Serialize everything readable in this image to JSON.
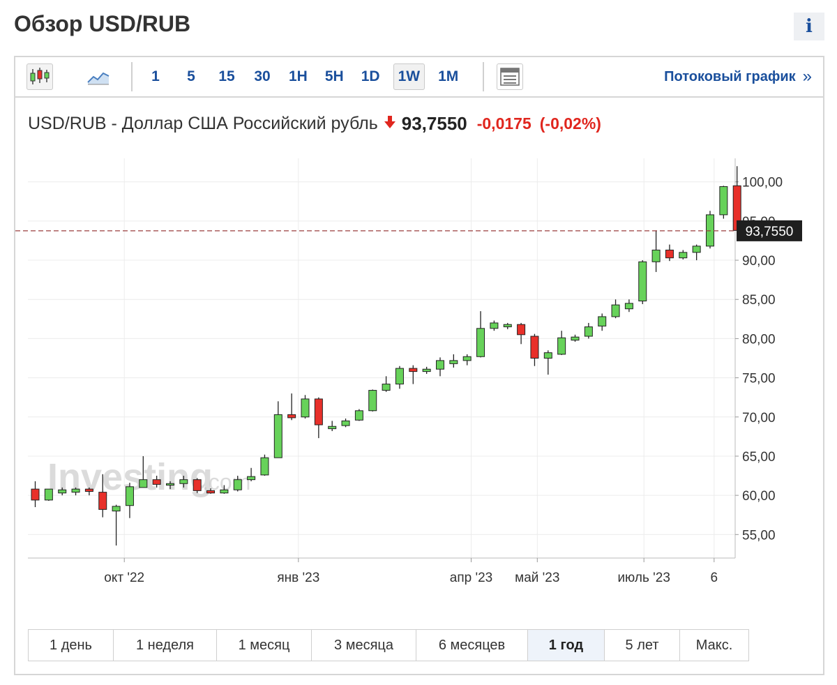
{
  "page": {
    "title": "Обзор USD/RUB",
    "info_label": "i"
  },
  "toolbar": {
    "intervals": [
      {
        "label": "1",
        "active": false
      },
      {
        "label": "5",
        "active": false
      },
      {
        "label": "15",
        "active": false
      },
      {
        "label": "30",
        "active": false
      },
      {
        "label": "1H",
        "active": false
      },
      {
        "label": "5H",
        "active": false
      },
      {
        "label": "1D",
        "active": false
      },
      {
        "label": "1W",
        "active": true
      },
      {
        "label": "1M",
        "active": false
      }
    ],
    "icons": {
      "candle": "candlestick-chart-icon",
      "line": "line-chart-icon",
      "layout": "chart-layout-icon"
    },
    "stream_label": "Потоковый график",
    "stream_arrow": "»"
  },
  "quote": {
    "name": "USD/RUB - Доллар США Российский рубль",
    "price": "93,7550",
    "change": "-0,0175",
    "change_pct": "(-0,02%)",
    "direction": "down"
  },
  "colors": {
    "up": "#67d25a",
    "down": "#e8302a",
    "accent": "#1a4f9c",
    "negative": "#e0261e",
    "current_line": "#9a3d3d"
  },
  "chart_data": {
    "type": "candlestick",
    "interval": "1W",
    "ylim": [
      52,
      103
    ],
    "y_ticks": [
      "55,00",
      "60,00",
      "65,00",
      "70,00",
      "75,00",
      "80,00",
      "85,00",
      "90,00",
      "95,00",
      "100,00"
    ],
    "y_tick_values": [
      55,
      60,
      65,
      70,
      75,
      80,
      85,
      90,
      95,
      100
    ],
    "x_ticks": [
      {
        "label": "окт '22",
        "index": 6.6
      },
      {
        "label": "янв '23",
        "index": 19.5
      },
      {
        "label": "апр '23",
        "index": 32.3
      },
      {
        "label": "май '23",
        "index": 37.2
      },
      {
        "label": "июль '23",
        "index": 45.1
      },
      {
        "label": "6",
        "index": 50.3
      }
    ],
    "current_price": 93.755,
    "current_label": "93,7550",
    "watermark": "Investing",
    "watermark_suffix": ".com",
    "candles": [
      {
        "o": 60.8,
        "h": 61.8,
        "l": 58.5,
        "c": 59.4
      },
      {
        "o": 59.4,
        "h": 60.8,
        "l": 59.3,
        "c": 60.8
      },
      {
        "o": 60.3,
        "h": 61.0,
        "l": 60.0,
        "c": 60.7
      },
      {
        "o": 60.4,
        "h": 61.0,
        "l": 60.0,
        "c": 60.8
      },
      {
        "o": 60.8,
        "h": 61.0,
        "l": 60.0,
        "c": 60.5
      },
      {
        "o": 60.4,
        "h": 62.7,
        "l": 57.2,
        "c": 58.2
      },
      {
        "o": 58.0,
        "h": 58.8,
        "l": 53.6,
        "c": 58.6
      },
      {
        "o": 58.7,
        "h": 61.6,
        "l": 57.1,
        "c": 61.1
      },
      {
        "o": 61.0,
        "h": 65.0,
        "l": 61.0,
        "c": 62.0
      },
      {
        "o": 62.0,
        "h": 62.5,
        "l": 61.0,
        "c": 61.4
      },
      {
        "o": 61.3,
        "h": 61.8,
        "l": 60.8,
        "c": 61.5
      },
      {
        "o": 61.5,
        "h": 62.5,
        "l": 61.0,
        "c": 62.0
      },
      {
        "o": 62.0,
        "h": 62.2,
        "l": 60.3,
        "c": 60.6
      },
      {
        "o": 60.6,
        "h": 60.9,
        "l": 60.2,
        "c": 60.3
      },
      {
        "o": 60.3,
        "h": 61.3,
        "l": 60.2,
        "c": 60.7
      },
      {
        "o": 60.7,
        "h": 62.5,
        "l": 60.5,
        "c": 62.0
      },
      {
        "o": 62.0,
        "h": 63.5,
        "l": 61.8,
        "c": 62.4
      },
      {
        "o": 62.6,
        "h": 65.2,
        "l": 62.5,
        "c": 64.8
      },
      {
        "o": 64.8,
        "h": 72.0,
        "l": 64.8,
        "c": 70.3
      },
      {
        "o": 70.3,
        "h": 73.0,
        "l": 69.6,
        "c": 69.9
      },
      {
        "o": 70.0,
        "h": 72.8,
        "l": 69.8,
        "c": 72.3
      },
      {
        "o": 72.3,
        "h": 72.5,
        "l": 67.3,
        "c": 69.0
      },
      {
        "o": 68.5,
        "h": 69.5,
        "l": 68.2,
        "c": 68.8
      },
      {
        "o": 68.9,
        "h": 69.8,
        "l": 68.7,
        "c": 69.5
      },
      {
        "o": 69.6,
        "h": 71.0,
        "l": 69.5,
        "c": 70.8
      },
      {
        "o": 70.8,
        "h": 73.5,
        "l": 70.7,
        "c": 73.4
      },
      {
        "o": 73.4,
        "h": 75.2,
        "l": 73.2,
        "c": 74.2
      },
      {
        "o": 74.2,
        "h": 76.5,
        "l": 73.6,
        "c": 76.2
      },
      {
        "o": 76.2,
        "h": 76.6,
        "l": 74.2,
        "c": 75.8
      },
      {
        "o": 75.8,
        "h": 76.4,
        "l": 75.5,
        "c": 76.1
      },
      {
        "o": 76.1,
        "h": 77.6,
        "l": 75.2,
        "c": 77.2
      },
      {
        "o": 76.8,
        "h": 78.0,
        "l": 76.3,
        "c": 77.2
      },
      {
        "o": 77.2,
        "h": 78.0,
        "l": 76.6,
        "c": 77.7
      },
      {
        "o": 77.7,
        "h": 83.5,
        "l": 77.6,
        "c": 81.3
      },
      {
        "o": 81.3,
        "h": 82.3,
        "l": 81.0,
        "c": 82.0
      },
      {
        "o": 81.5,
        "h": 82.0,
        "l": 81.2,
        "c": 81.8
      },
      {
        "o": 81.8,
        "h": 82.0,
        "l": 79.3,
        "c": 80.5
      },
      {
        "o": 80.3,
        "h": 80.6,
        "l": 76.5,
        "c": 77.5
      },
      {
        "o": 77.5,
        "h": 78.5,
        "l": 75.4,
        "c": 78.2
      },
      {
        "o": 78.0,
        "h": 81.0,
        "l": 77.9,
        "c": 80.1
      },
      {
        "o": 79.8,
        "h": 80.5,
        "l": 79.6,
        "c": 80.2
      },
      {
        "o": 80.3,
        "h": 82.0,
        "l": 80.0,
        "c": 81.5
      },
      {
        "o": 81.6,
        "h": 83.2,
        "l": 81.0,
        "c": 82.8
      },
      {
        "o": 82.8,
        "h": 85.0,
        "l": 82.6,
        "c": 84.3
      },
      {
        "o": 83.8,
        "h": 85.0,
        "l": 83.4,
        "c": 84.5
      },
      {
        "o": 84.8,
        "h": 90.0,
        "l": 84.4,
        "c": 89.8
      },
      {
        "o": 89.8,
        "h": 93.8,
        "l": 88.5,
        "c": 91.3
      },
      {
        "o": 91.3,
        "h": 92.0,
        "l": 89.9,
        "c": 90.3
      },
      {
        "o": 90.3,
        "h": 91.3,
        "l": 90.1,
        "c": 91.0
      },
      {
        "o": 91.0,
        "h": 92.0,
        "l": 90.0,
        "c": 91.8
      },
      {
        "o": 91.8,
        "h": 96.3,
        "l": 91.5,
        "c": 95.8
      },
      {
        "o": 95.8,
        "h": 99.5,
        "l": 95.3,
        "c": 99.4
      },
      {
        "o": 99.5,
        "h": 102.0,
        "l": 92.8,
        "c": 93.8
      }
    ]
  },
  "range_buttons": [
    {
      "label": "1 день",
      "active": false
    },
    {
      "label": "1 неделя",
      "active": false
    },
    {
      "label": "1 месяц",
      "active": false
    },
    {
      "label": "3 месяца",
      "active": false
    },
    {
      "label": "6 месяцев",
      "active": false
    },
    {
      "label": "1 год",
      "active": true
    },
    {
      "label": "5 лет",
      "active": false
    },
    {
      "label": "Макс.",
      "active": false
    }
  ]
}
